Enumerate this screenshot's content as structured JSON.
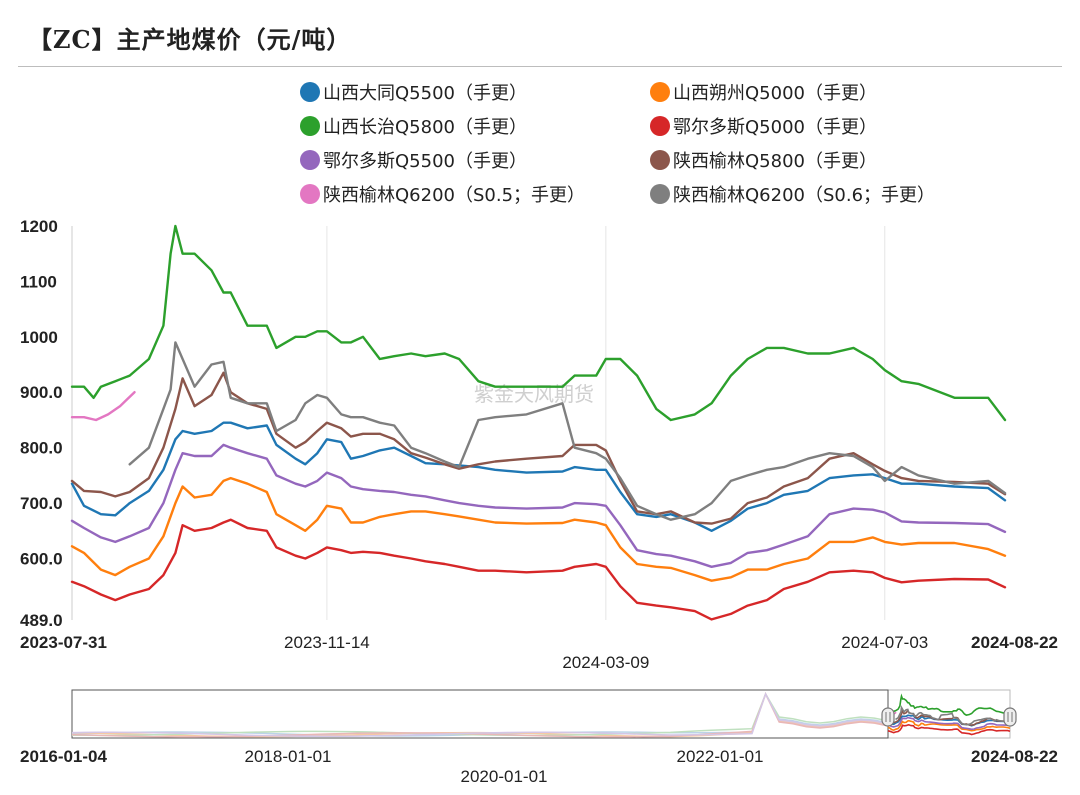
{
  "title": "【ZC】主产地煤价（元/吨）",
  "watermark": "紫金天风期货",
  "chart_data": {
    "type": "line",
    "title": "【ZC】主产地煤价（元/吨）",
    "unit": "元/吨",
    "ylim": [
      489.0,
      1200
    ],
    "y_ticks": [
      "1200",
      "1100",
      "1000",
      "900.0",
      "800.0",
      "700.0",
      "600.0",
      "489.0"
    ],
    "x_range": [
      "2023-07-31",
      "2024-08-22"
    ],
    "x_ticks": [
      "2023-07-31",
      "2023-11-14",
      "2024-03-09",
      "2024-07-03",
      "2024-08-22"
    ],
    "grid": "vertical",
    "legend_position": "top",
    "navigator": {
      "x_ticks": [
        "2016-01-04",
        "2018-01-01",
        "2020-01-01",
        "2022-01-01",
        "2024-08-22"
      ]
    },
    "series": [
      {
        "name": "山西大同Q5500（手更）",
        "color": "#1f77b4",
        "x": [
          "2023-07-31",
          "2023-08-05",
          "2023-08-12",
          "2023-08-18",
          "2023-08-24",
          "2023-09-01",
          "2023-09-07",
          "2023-09-12",
          "2023-09-15",
          "2023-09-20",
          "2023-09-27",
          "2023-10-02",
          "2023-10-05",
          "2023-10-12",
          "2023-10-20",
          "2023-10-24",
          "2023-11-01",
          "2023-11-05",
          "2023-11-10",
          "2023-11-14",
          "2023-11-20",
          "2023-11-24",
          "2023-11-29",
          "2023-12-06",
          "2023-12-12",
          "2023-12-19",
          "2023-12-25",
          "2024-01-02",
          "2024-01-08",
          "2024-01-16",
          "2024-01-23",
          "2024-02-05",
          "2024-02-20",
          "2024-02-25",
          "2024-03-05",
          "2024-03-09",
          "2024-03-15",
          "2024-03-22",
          "2024-03-30",
          "2024-04-05",
          "2024-04-15",
          "2024-04-22",
          "2024-04-30",
          "2024-05-07",
          "2024-05-15",
          "2024-05-22",
          "2024-06-01",
          "2024-06-10",
          "2024-06-20",
          "2024-06-28",
          "2024-07-03",
          "2024-07-10",
          "2024-07-17",
          "2024-08-01",
          "2024-08-15",
          "2024-08-22"
        ],
        "y": [
          735,
          695,
          680,
          678,
          700,
          722,
          760,
          815,
          830,
          825,
          830,
          845,
          845,
          835,
          840,
          805,
          780,
          770,
          790,
          815,
          810,
          780,
          785,
          795,
          800,
          785,
          772,
          770,
          768,
          765,
          760,
          755,
          757,
          765,
          760,
          760,
          720,
          680,
          675,
          680,
          665,
          650,
          668,
          690,
          700,
          715,
          722,
          745,
          750,
          752,
          745,
          735,
          735,
          730,
          727,
          705
        ]
      },
      {
        "name": "山西朔州Q5000（手更）",
        "color": "#ff7f0e",
        "x": [
          "2023-07-31",
          "2023-08-05",
          "2023-08-12",
          "2023-08-18",
          "2023-08-24",
          "2023-09-01",
          "2023-09-07",
          "2023-09-12",
          "2023-09-15",
          "2023-09-20",
          "2023-09-27",
          "2023-10-02",
          "2023-10-05",
          "2023-10-12",
          "2023-10-20",
          "2023-10-24",
          "2023-11-01",
          "2023-11-05",
          "2023-11-10",
          "2023-11-14",
          "2023-11-20",
          "2023-11-24",
          "2023-11-29",
          "2023-12-06",
          "2023-12-12",
          "2023-12-19",
          "2023-12-25",
          "2024-01-02",
          "2024-01-08",
          "2024-01-16",
          "2024-01-23",
          "2024-02-05",
          "2024-02-20",
          "2024-02-25",
          "2024-03-05",
          "2024-03-09",
          "2024-03-15",
          "2024-03-22",
          "2024-03-30",
          "2024-04-05",
          "2024-04-15",
          "2024-04-22",
          "2024-04-30",
          "2024-05-07",
          "2024-05-15",
          "2024-05-22",
          "2024-06-01",
          "2024-06-10",
          "2024-06-20",
          "2024-06-28",
          "2024-07-03",
          "2024-07-10",
          "2024-07-17",
          "2024-08-01",
          "2024-08-15",
          "2024-08-22"
        ],
        "y": [
          622,
          610,
          580,
          570,
          585,
          600,
          640,
          700,
          730,
          710,
          715,
          740,
          745,
          735,
          720,
          680,
          660,
          650,
          670,
          695,
          690,
          665,
          665,
          675,
          680,
          685,
          685,
          680,
          676,
          670,
          665,
          663,
          664,
          670,
          665,
          660,
          620,
          590,
          585,
          583,
          570,
          560,
          566,
          580,
          580,
          590,
          600,
          630,
          630,
          638,
          630,
          625,
          628,
          628,
          617,
          605
        ]
      },
      {
        "name": "山西长治Q5800（手更）",
        "color": "#2ca02c",
        "x": [
          "2023-07-31",
          "2023-08-05",
          "2023-08-09",
          "2023-08-12",
          "2023-08-18",
          "2023-08-24",
          "2023-09-01",
          "2023-09-07",
          "2023-09-10",
          "2023-09-12",
          "2023-09-15",
          "2023-09-20",
          "2023-09-27",
          "2023-10-02",
          "2023-10-05",
          "2023-10-12",
          "2023-10-20",
          "2023-10-24",
          "2023-11-01",
          "2023-11-05",
          "2023-11-10",
          "2023-11-14",
          "2023-11-20",
          "2023-11-24",
          "2023-11-29",
          "2023-12-06",
          "2023-12-12",
          "2023-12-19",
          "2023-12-25",
          "2024-01-02",
          "2024-01-08",
          "2024-01-16",
          "2024-01-23",
          "2024-02-05",
          "2024-02-20",
          "2024-02-25",
          "2024-03-05",
          "2024-03-09",
          "2024-03-15",
          "2024-03-22",
          "2024-03-30",
          "2024-04-05",
          "2024-04-15",
          "2024-04-22",
          "2024-04-30",
          "2024-05-07",
          "2024-05-15",
          "2024-05-22",
          "2024-06-01",
          "2024-06-10",
          "2024-06-20",
          "2024-06-28",
          "2024-07-03",
          "2024-07-10",
          "2024-07-17",
          "2024-08-01",
          "2024-08-15",
          "2024-08-22"
        ],
        "y": [
          910,
          910,
          890,
          910,
          920,
          930,
          960,
          1020,
          1150,
          1200,
          1150,
          1150,
          1120,
          1080,
          1080,
          1020,
          1020,
          980,
          1000,
          1000,
          1010,
          1010,
          990,
          990,
          1000,
          960,
          965,
          970,
          965,
          970,
          960,
          920,
          910,
          910,
          910,
          930,
          930,
          960,
          960,
          930,
          870,
          850,
          860,
          880,
          930,
          960,
          980,
          980,
          970,
          970,
          980,
          960,
          940,
          920,
          915,
          890,
          890,
          850
        ]
      },
      {
        "name": "鄂尔多斯Q5000（手更）",
        "color": "#d62728",
        "x": [
          "2023-07-31",
          "2023-08-05",
          "2023-08-12",
          "2023-08-18",
          "2023-08-24",
          "2023-09-01",
          "2023-09-07",
          "2023-09-12",
          "2023-09-15",
          "2023-09-20",
          "2023-09-27",
          "2023-10-02",
          "2023-10-05",
          "2023-10-12",
          "2023-10-20",
          "2023-10-24",
          "2023-11-01",
          "2023-11-05",
          "2023-11-10",
          "2023-11-14",
          "2023-11-20",
          "2023-11-24",
          "2023-11-29",
          "2023-12-06",
          "2023-12-12",
          "2023-12-19",
          "2023-12-25",
          "2024-01-02",
          "2024-01-08",
          "2024-01-16",
          "2024-01-23",
          "2024-02-05",
          "2024-02-20",
          "2024-02-25",
          "2024-03-05",
          "2024-03-09",
          "2024-03-15",
          "2024-03-22",
          "2024-03-30",
          "2024-04-05",
          "2024-04-15",
          "2024-04-22",
          "2024-04-30",
          "2024-05-07",
          "2024-05-15",
          "2024-05-22",
          "2024-06-01",
          "2024-06-10",
          "2024-06-20",
          "2024-06-28",
          "2024-07-03",
          "2024-07-10",
          "2024-07-17",
          "2024-08-01",
          "2024-08-15",
          "2024-08-22"
        ],
        "y": [
          558,
          550,
          535,
          525,
          535,
          545,
          570,
          610,
          660,
          650,
          655,
          665,
          670,
          655,
          650,
          620,
          605,
          600,
          610,
          620,
          615,
          610,
          612,
          610,
          605,
          600,
          595,
          590,
          585,
          578,
          578,
          575,
          578,
          585,
          590,
          585,
          550,
          520,
          515,
          512,
          505,
          490,
          500,
          515,
          525,
          545,
          558,
          575,
          578,
          575,
          565,
          557,
          560,
          563,
          562,
          548
        ]
      },
      {
        "name": "鄂尔多斯Q5500（手更）",
        "color": "#9467bd",
        "x": [
          "2023-07-31",
          "2023-08-05",
          "2023-08-12",
          "2023-08-18",
          "2023-08-24",
          "2023-09-01",
          "2023-09-07",
          "2023-09-12",
          "2023-09-15",
          "2023-09-20",
          "2023-09-27",
          "2023-10-02",
          "2023-10-05",
          "2023-10-12",
          "2023-10-20",
          "2023-10-24",
          "2023-11-01",
          "2023-11-05",
          "2023-11-10",
          "2023-11-14",
          "2023-11-20",
          "2023-11-24",
          "2023-11-29",
          "2023-12-06",
          "2023-12-12",
          "2023-12-19",
          "2023-12-25",
          "2024-01-02",
          "2024-01-08",
          "2024-01-16",
          "2024-01-23",
          "2024-02-05",
          "2024-02-20",
          "2024-02-25",
          "2024-03-05",
          "2024-03-09",
          "2024-03-15",
          "2024-03-22",
          "2024-03-30",
          "2024-04-05",
          "2024-04-15",
          "2024-04-22",
          "2024-04-30",
          "2024-05-07",
          "2024-05-15",
          "2024-05-22",
          "2024-06-01",
          "2024-06-10",
          "2024-06-20",
          "2024-06-28",
          "2024-07-03",
          "2024-07-10",
          "2024-07-17",
          "2024-08-01",
          "2024-08-15",
          "2024-08-22"
        ],
        "y": [
          668,
          655,
          638,
          630,
          640,
          655,
          700,
          760,
          790,
          785,
          785,
          805,
          800,
          790,
          780,
          750,
          735,
          730,
          740,
          755,
          745,
          730,
          725,
          722,
          720,
          715,
          712,
          705,
          700,
          695,
          692,
          690,
          692,
          700,
          698,
          695,
          660,
          615,
          608,
          605,
          595,
          585,
          592,
          610,
          615,
          625,
          640,
          680,
          690,
          688,
          683,
          667,
          665,
          664,
          662,
          648
        ]
      },
      {
        "name": "陕西榆林Q5800（手更）",
        "color": "#8c564b",
        "x": [
          "2023-07-31",
          "2023-08-05",
          "2023-08-12",
          "2023-08-18",
          "2023-08-24",
          "2023-09-01",
          "2023-09-07",
          "2023-09-12",
          "2023-09-15",
          "2023-09-20",
          "2023-09-27",
          "2023-10-02",
          "2023-10-05",
          "2023-10-12",
          "2023-10-20",
          "2023-10-24",
          "2023-11-01",
          "2023-11-05",
          "2023-11-10",
          "2023-11-14",
          "2023-11-20",
          "2023-11-24",
          "2023-11-29",
          "2023-12-06",
          "2023-12-12",
          "2023-12-19",
          "2023-12-25",
          "2024-01-02",
          "2024-01-08",
          "2024-01-16",
          "2024-01-23",
          "2024-02-05",
          "2024-02-20",
          "2024-02-25",
          "2024-03-05",
          "2024-03-09",
          "2024-03-15",
          "2024-03-22",
          "2024-03-30",
          "2024-04-05",
          "2024-04-15",
          "2024-04-22",
          "2024-04-30",
          "2024-05-07",
          "2024-05-15",
          "2024-05-22",
          "2024-06-01",
          "2024-06-10",
          "2024-06-20",
          "2024-06-28",
          "2024-07-03",
          "2024-07-10",
          "2024-07-17",
          "2024-08-01",
          "2024-08-15",
          "2024-08-22"
        ],
        "y": [
          740,
          722,
          720,
          712,
          720,
          745,
          800,
          870,
          925,
          875,
          895,
          935,
          900,
          880,
          870,
          825,
          800,
          810,
          830,
          845,
          835,
          820,
          825,
          825,
          815,
          790,
          782,
          770,
          762,
          770,
          775,
          780,
          785,
          805,
          805,
          795,
          740,
          685,
          680,
          685,
          665,
          663,
          672,
          700,
          710,
          730,
          745,
          780,
          790,
          770,
          758,
          745,
          740,
          738,
          735,
          716
        ]
      },
      {
        "name": "陕西榆林Q6200（S0.5；手更）",
        "color": "#e377c2",
        "x": [
          "2023-07-31",
          "2023-08-05",
          "2023-08-10",
          "2023-08-15",
          "2023-08-20",
          "2023-08-26"
        ],
        "y": [
          855,
          855,
          850,
          860,
          875,
          900
        ]
      },
      {
        "name": "陕西榆林Q6200（S0.6；手更）",
        "color": "#7f7f7f",
        "x": [
          "2023-08-24",
          "2023-09-01",
          "2023-09-07",
          "2023-09-10",
          "2023-09-12",
          "2023-09-15",
          "2023-09-20",
          "2023-09-27",
          "2023-10-02",
          "2023-10-05",
          "2023-10-12",
          "2023-10-20",
          "2023-10-24",
          "2023-11-01",
          "2023-11-05",
          "2023-11-10",
          "2023-11-14",
          "2023-11-20",
          "2023-11-24",
          "2023-11-29",
          "2023-12-06",
          "2023-12-12",
          "2023-12-19",
          "2023-12-25",
          "2024-01-02",
          "2024-01-08",
          "2024-01-16",
          "2024-01-23",
          "2024-02-05",
          "2024-02-20",
          "2024-02-25",
          "2024-03-05",
          "2024-03-09",
          "2024-03-15",
          "2024-03-22",
          "2024-03-30",
          "2024-04-05",
          "2024-04-15",
          "2024-04-22",
          "2024-04-30",
          "2024-05-07",
          "2024-05-15",
          "2024-05-22",
          "2024-06-01",
          "2024-06-10",
          "2024-06-20",
          "2024-06-28",
          "2024-07-03",
          "2024-07-10",
          "2024-07-17",
          "2024-08-01",
          "2024-08-15",
          "2024-08-22"
        ],
        "y": [
          770,
          800,
          870,
          905,
          990,
          960,
          910,
          950,
          955,
          890,
          880,
          880,
          830,
          850,
          880,
          895,
          890,
          860,
          855,
          855,
          845,
          840,
          800,
          790,
          775,
          765,
          850,
          855,
          860,
          880,
          800,
          790,
          780,
          745,
          695,
          680,
          670,
          680,
          700,
          740,
          750,
          760,
          765,
          780,
          790,
          785,
          765,
          740,
          765,
          750,
          735,
          740,
          718
        ]
      }
    ]
  }
}
